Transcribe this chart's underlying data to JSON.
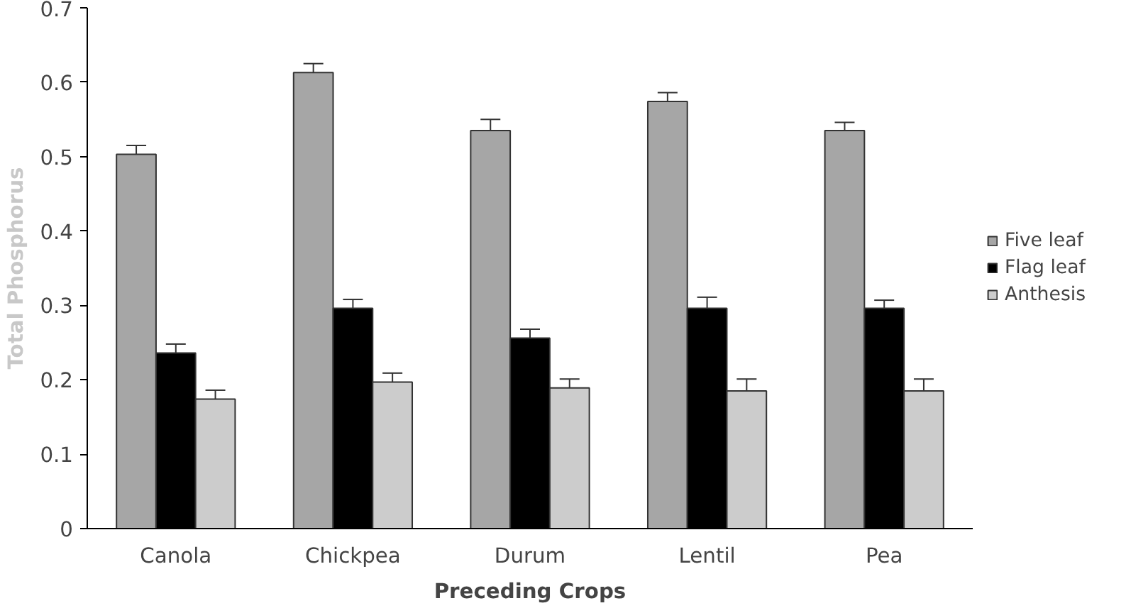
{
  "chart_data": {
    "type": "bar",
    "xlabel": "Preceding Crops",
    "ylabel": "Total Phosphorus",
    "categories": [
      "Canola",
      "Chickpea",
      "Durum",
      "Lentil",
      "Pea"
    ],
    "series": [
      {
        "name": "Five leaf",
        "color": "#a6a6a6",
        "values": [
          0.503,
          0.613,
          0.535,
          0.574,
          0.535
        ],
        "errors": [
          0.012,
          0.012,
          0.015,
          0.012,
          0.011
        ]
      },
      {
        "name": "Flag leaf",
        "color": "#000000",
        "values": [
          0.236,
          0.296,
          0.256,
          0.296,
          0.296
        ],
        "errors": [
          0.012,
          0.012,
          0.012,
          0.015,
          0.011
        ]
      },
      {
        "name": "Anthesis",
        "color": "#cccccc",
        "values": [
          0.174,
          0.197,
          0.189,
          0.185,
          0.185
        ],
        "errors": [
          0.012,
          0.012,
          0.012,
          0.016,
          0.016
        ]
      }
    ],
    "ylim": [
      0,
      0.7
    ],
    "yticks": [
      0,
      0.1,
      0.2,
      0.3,
      0.4,
      0.5,
      0.6,
      0.7
    ],
    "grid": false,
    "legend": "right"
  }
}
